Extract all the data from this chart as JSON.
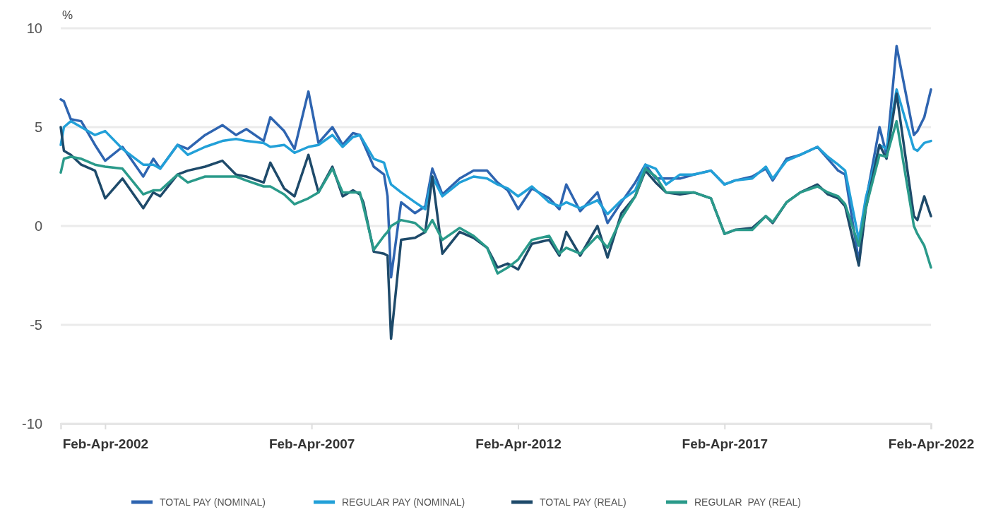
{
  "chart_data": {
    "type": "line",
    "ylabel": "%",
    "x": [
      "2001-02",
      "2001-03",
      "2001-05",
      "2001-08",
      "2001-12",
      "2002-03",
      "2002-08",
      "2003-02",
      "2003-05",
      "2003-07",
      "2003-12",
      "2004-03",
      "2004-08",
      "2005-01",
      "2005-05",
      "2005-08",
      "2006-01",
      "2006-03",
      "2006-07",
      "2006-10",
      "2007-02",
      "2007-05",
      "2007-09",
      "2007-12",
      "2008-03",
      "2008-05",
      "2008-06",
      "2008-09",
      "2008-12",
      "2009-01",
      "2009-02",
      "2009-05",
      "2009-09",
      "2009-12",
      "2010-02",
      "2010-05",
      "2010-10",
      "2011-02",
      "2011-06",
      "2011-09",
      "2011-12",
      "2012-03",
      "2012-07",
      "2012-12",
      "2013-03",
      "2013-05",
      "2013-09",
      "2014-02",
      "2014-05",
      "2014-09",
      "2015-01",
      "2015-04",
      "2015-07",
      "2015-10",
      "2016-02",
      "2016-06",
      "2016-11",
      "2017-03",
      "2017-06",
      "2017-11",
      "2018-03",
      "2018-05",
      "2018-09",
      "2019-01",
      "2019-06",
      "2019-09",
      "2019-12",
      "2020-02",
      "2020-06",
      "2020-08",
      "2020-12",
      "2021-02",
      "2021-05",
      "2021-10",
      "2021-11",
      "2022-01",
      "2022-03"
    ],
    "series": [
      {
        "name": "TOTAL PAY (NOMINAL)",
        "color": "#2e64b0",
        "values": [
          6.4,
          6.3,
          5.4,
          5.3,
          4.1,
          3.3,
          4.0,
          2.5,
          3.4,
          2.9,
          4.1,
          3.9,
          4.6,
          5.1,
          4.6,
          4.9,
          4.3,
          5.5,
          4.8,
          3.9,
          6.8,
          4.2,
          5.0,
          4.1,
          4.7,
          4.6,
          4.2,
          3.0,
          2.6,
          1.5,
          -2.6,
          1.2,
          0.65,
          1.0,
          2.9,
          1.6,
          2.4,
          2.8,
          2.8,
          2.2,
          1.8,
          0.85,
          1.9,
          1.4,
          0.85,
          2.1,
          0.75,
          1.7,
          0.15,
          1.2,
          2.2,
          3.1,
          2.4,
          2.4,
          2.4,
          2.6,
          2.8,
          2.1,
          2.3,
          2.5,
          2.9,
          2.3,
          3.4,
          3.6,
          4.0,
          3.4,
          2.8,
          2.6,
          -1.8,
          1.2,
          5.0,
          3.6,
          9.1,
          4.6,
          4.8,
          5.5,
          6.9
        ]
      },
      {
        "name": "REGULAR PAY (NOMINAL)",
        "color": "#22a0d8",
        "values": [
          4.1,
          5.0,
          5.3,
          5.0,
          4.6,
          4.8,
          3.9,
          3.1,
          3.1,
          2.9,
          4.1,
          3.6,
          4.0,
          4.3,
          4.4,
          4.3,
          4.2,
          4.0,
          4.1,
          3.7,
          4.0,
          4.1,
          4.6,
          4.0,
          4.5,
          4.6,
          4.3,
          3.4,
          3.2,
          2.6,
          2.1,
          1.7,
          1.2,
          0.85,
          2.5,
          1.5,
          2.2,
          2.5,
          2.4,
          2.1,
          1.9,
          1.5,
          2.0,
          1.2,
          1.0,
          1.2,
          0.9,
          1.3,
          0.6,
          1.3,
          1.8,
          3.1,
          2.9,
          2.1,
          2.6,
          2.6,
          2.8,
          2.1,
          2.3,
          2.4,
          3.0,
          2.4,
          3.3,
          3.6,
          4.0,
          3.5,
          3.1,
          2.8,
          -0.7,
          1.4,
          4.1,
          3.9,
          6.9,
          3.9,
          3.8,
          4.2,
          4.3
        ]
      },
      {
        "name": "TOTAL PAY (REAL)",
        "color": "#1e4a6a",
        "values": [
          5.0,
          3.8,
          3.6,
          3.1,
          2.8,
          1.4,
          2.4,
          0.9,
          1.7,
          1.5,
          2.6,
          2.8,
          3.0,
          3.3,
          2.6,
          2.5,
          2.2,
          3.2,
          1.9,
          1.5,
          3.6,
          1.7,
          3.0,
          1.5,
          1.8,
          1.6,
          1.2,
          -1.3,
          -1.4,
          -1.5,
          -5.7,
          -0.7,
          -0.6,
          -0.3,
          2.5,
          -1.4,
          -0.3,
          -0.6,
          -1.1,
          -2.1,
          -1.9,
          -2.2,
          -0.9,
          -0.7,
          -1.5,
          -0.3,
          -1.5,
          0.0,
          -1.6,
          0.65,
          1.5,
          2.8,
          2.2,
          1.7,
          1.6,
          1.7,
          1.4,
          -0.4,
          -0.2,
          -0.1,
          0.5,
          0.15,
          1.2,
          1.7,
          2.1,
          1.6,
          1.4,
          1.0,
          -2.0,
          0.85,
          4.1,
          3.4,
          6.7,
          0.5,
          0.3,
          1.5,
          0.5
        ]
      },
      {
        "name": "REGULAR  PAY (REAL)",
        "color": "#2a9a8a",
        "values": [
          2.7,
          3.4,
          3.5,
          3.4,
          3.1,
          3.0,
          2.9,
          1.6,
          1.8,
          1.8,
          2.6,
          2.2,
          2.5,
          2.5,
          2.5,
          2.3,
          2.0,
          2.0,
          1.6,
          1.1,
          1.4,
          1.7,
          2.9,
          1.7,
          1.7,
          1.7,
          1.0,
          -1.2,
          -0.5,
          -0.3,
          0.0,
          0.3,
          0.15,
          -0.3,
          0.3,
          -0.7,
          -0.1,
          -0.5,
          -1.1,
          -2.4,
          -2.1,
          -1.7,
          -0.7,
          -0.5,
          -1.4,
          -1.1,
          -1.4,
          -0.5,
          -1.1,
          0.4,
          1.5,
          2.9,
          2.5,
          1.7,
          1.7,
          1.7,
          1.4,
          -0.4,
          -0.2,
          -0.2,
          0.5,
          0.2,
          1.2,
          1.7,
          2.0,
          1.7,
          1.5,
          1.1,
          -1.0,
          0.9,
          3.6,
          3.5,
          5.3,
          0.0,
          -0.4,
          -1.0,
          -2.1
        ]
      }
    ],
    "xlim": [
      "2001-02",
      "2022-03"
    ],
    "xticks": [
      {
        "value": "2002-03",
        "label": "Feb-Apr-2002"
      },
      {
        "value": "2007-03",
        "label": "Feb-Apr-2007"
      },
      {
        "value": "2012-03",
        "label": "Feb-Apr-2012"
      },
      {
        "value": "2017-03",
        "label": "Feb-Apr-2017"
      },
      {
        "value": "2022-03",
        "label": "Feb-Apr-2022"
      }
    ],
    "ylim": [
      -10,
      10
    ],
    "yticks": [
      -10,
      -5,
      0,
      5,
      10
    ],
    "grid": "y",
    "legend": "bottom"
  }
}
